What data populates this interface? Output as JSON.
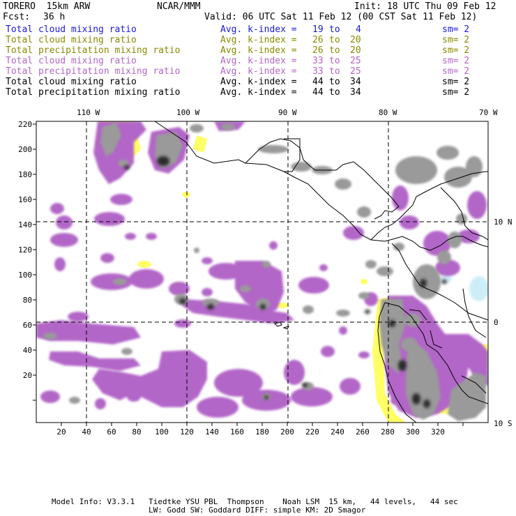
{
  "header": {
    "model": "TORERO  15km ARW",
    "center": "NCAR/MMM",
    "init": "Init: 18 UTC Thu 09 Feb 12",
    "fcst_label": "Fcst:",
    "fcst_value": "36 h",
    "valid": "Valid: 06 UTC Sat 11 Feb 12 (00 CST Sat 11 Feb 12)"
  },
  "legend": [
    {
      "field": "Total cloud mixing ratio",
      "kindex": "Avg. k-index =",
      "from": "19",
      "to": "4",
      "sm": "sm= 2",
      "color": "#1a1ad6"
    },
    {
      "field": "Total cloud mixing ratio",
      "kindex": "Avg. k-index =",
      "from": "26",
      "to": "20",
      "sm": "sm= 2",
      "color": "#8a8a00"
    },
    {
      "field": "Total precipitation mixing ratio",
      "kindex": "Avg. k-index =",
      "from": "26",
      "to": "20",
      "sm": "sm= 2",
      "color": "#8a8a00"
    },
    {
      "field": "Total cloud mixing ratio",
      "kindex": "Avg. k-index =",
      "from": "33",
      "to": "25",
      "sm": "sm= 2",
      "color": "#b266c8"
    },
    {
      "field": "Total precipitation mixing ratio",
      "kindex": "Avg. k-index =",
      "from": "33",
      "to": "25",
      "sm": "sm= 2",
      "color": "#b266c8"
    },
    {
      "field": "Total cloud mixing ratio",
      "kindex": "Avg. k-index =",
      "from": "44",
      "to": "34",
      "sm": "sm= 2",
      "color": "#000000"
    },
    {
      "field": "Total precipitation mixing ratio",
      "kindex": "Avg. k-index =",
      "from": "44",
      "to": "34",
      "sm": "sm= 2",
      "color": "#000000"
    }
  ],
  "to_word": "to",
  "map": {
    "lon_labels": [
      "110 W",
      "100 W",
      "90 W",
      "80 W",
      "70 W"
    ],
    "lat_labels": [
      "10 N",
      "0",
      "10 S"
    ],
    "y_ticks": [
      "220",
      "200",
      "180",
      "160",
      "140",
      "120",
      "100",
      "80",
      "60",
      "40",
      "20"
    ],
    "x_ticks": [
      "20",
      "40",
      "60",
      "80",
      "100",
      "120",
      "140",
      "160",
      "180",
      "200",
      "220",
      "240",
      "260",
      "280",
      "300",
      "320"
    ],
    "colors": {
      "purple": "#b266c8",
      "yellow": "#ffff66",
      "gray": "#9a9a9a",
      "dark": "#333333",
      "cyan": "#cdeef8"
    }
  },
  "footer": {
    "line1": "Model Info: V3.3.1   Tiedtke YSU PBL  Thompson    Noah LSM  15 km,   44 levels,   44 sec",
    "line2": "LW: Godd SW: Goddard DIFF: simple KM: 2D Smagor"
  }
}
